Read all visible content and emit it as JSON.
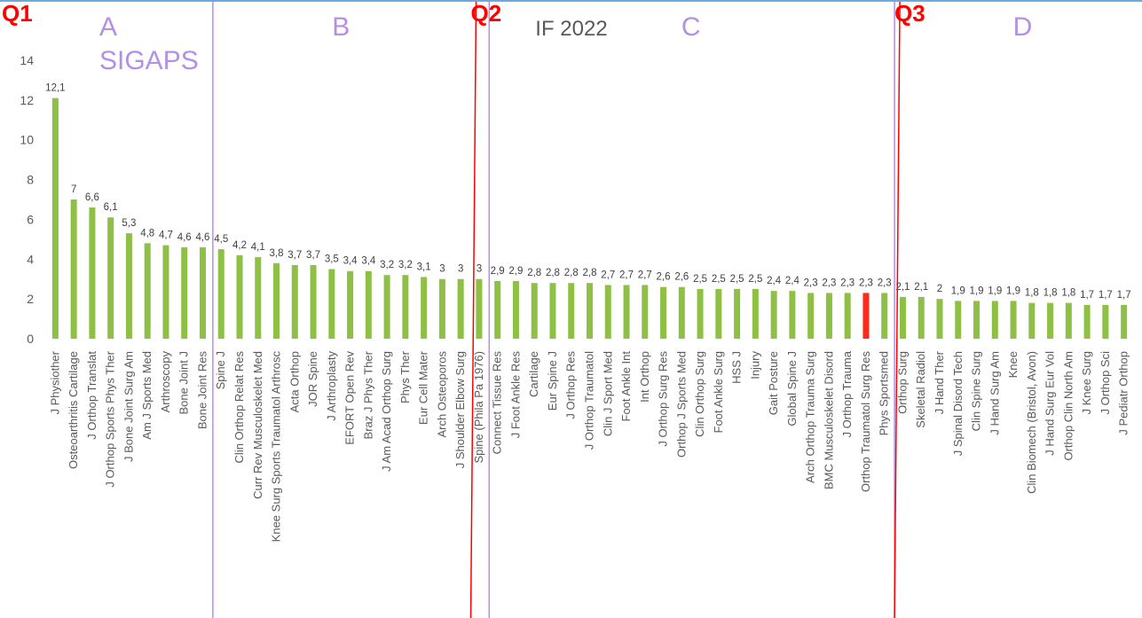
{
  "chart_data": {
    "type": "bar",
    "title": "IF 2022",
    "ylim": [
      0,
      14
    ],
    "yticks": [
      "0",
      "2",
      "4",
      "6",
      "8",
      "10",
      "12",
      "14"
    ],
    "grid": false,
    "bar_color": "#8dc044",
    "highlight_color": "#ff2a1a",
    "highlight_category": "Orthop Traumatol Surg Res",
    "categories": [
      "J Physiother",
      "Osteoarthritis Cartilage",
      "J Orthop Translat",
      "J Orthop Sports Phys Ther",
      "J Bone Joint Surg Am",
      "Am J Sports Med",
      "Arthroscopy",
      "Bone Joint J",
      "Bone Joint Res",
      "Spine J",
      "Clin Orthop Relat Res",
      "Curr Rev Musculoskelet Med",
      "Knee Surg Sports Traumatol Arthrosc",
      "Acta Orthop",
      "JOR Spine",
      "J Arthroplasty",
      "EFORT Open Rev",
      "Braz J Phys Ther",
      "J Am Acad Orthop Surg",
      "Phys Ther",
      "Eur Cell Mater",
      "Arch Osteoporos",
      "J Shoulder Elbow Surg",
      "Spine (Phila Pa 1976)",
      "Connect Tissue Res",
      "J Foot Ankle Res",
      "Cartilage",
      "Eur Spine J",
      "J Orthop Res",
      "J Orthop Traumatol",
      "Clin J Sport Med",
      "Foot Ankle Int",
      "Int Orthop",
      "J Orthop Surg Res",
      "Orthop J Sports Med",
      "Clin Orthop Surg",
      "Foot Ankle Surg",
      "HSS J",
      "Injury",
      "Gait Posture",
      "Global Spine J",
      "Arch Orthop Trauma Surg",
      "BMC Musculoskelet Disord",
      "J Orthop Trauma",
      "Orthop Traumatol Surg Res",
      "Phys Sportsmed",
      "Orthop Surg",
      "Skeletal Radiol",
      "J Hand Ther",
      "J Spinal Disord Tech",
      "Clin Spine Surg",
      "J Hand Surg Am",
      "Knee",
      "Clin Biomech (Bristol, Avon)",
      "J Hand Surg Eur Vol",
      "Orthop Clin North Am",
      "J Knee Surg",
      "J Orthop Sci",
      "J Pediatr Orthop"
    ],
    "values": [
      12.1,
      7,
      6.6,
      6.1,
      5.3,
      4.8,
      4.7,
      4.6,
      4.6,
      4.5,
      4.2,
      4.1,
      3.8,
      3.7,
      3.7,
      3.5,
      3.4,
      3.4,
      3.2,
      3.2,
      3.1,
      3,
      3,
      3,
      2.9,
      2.9,
      2.8,
      2.8,
      2.8,
      2.8,
      2.7,
      2.7,
      2.7,
      2.6,
      2.6,
      2.5,
      2.5,
      2.5,
      2.5,
      2.4,
      2.4,
      2.3,
      2.3,
      2.3,
      2.3,
      2.3,
      2.1,
      2.1,
      2,
      1.9,
      1.9,
      1.9,
      1.9,
      1.8,
      1.8,
      1.8,
      1.7,
      1.7,
      1.7
    ],
    "data_labels": [
      "12,1",
      "7",
      "6,6",
      "6,1",
      "5,3",
      "4,8",
      "4,7",
      "4,6",
      "4,6",
      "4,5",
      "4,2",
      "4,1",
      "3,8",
      "3,7",
      "3,7",
      "3,5",
      "3,4",
      "3,4",
      "3,2",
      "3,2",
      "3,1",
      "3",
      "3",
      "3",
      "2,9",
      "2,9",
      "2,8",
      "2,8",
      "2,8",
      "2,8",
      "2,7",
      "2,7",
      "2,7",
      "2,6",
      "2,6",
      "2,5",
      "2,5",
      "2,5",
      "2,5",
      "2,4",
      "2,4",
      "2,3",
      "2,3",
      "2,3",
      "2,3",
      "2,3",
      "2,1",
      "2,1",
      "2",
      "1,9",
      "1,9",
      "1,9",
      "1,9",
      "1,8",
      "1,8",
      "1,8",
      "1,7",
      "1,7",
      "1,7"
    ],
    "quartile_dividers": [
      {
        "label": "Q1",
        "after_index": -1,
        "color": "#ff0000"
      },
      {
        "label": "Q2",
        "after_index": 22,
        "color": "#ff0000"
      },
      {
        "label": "Q3",
        "after_index": 45,
        "color": "#ff0000"
      }
    ],
    "group_dividers": [
      {
        "after_index": 8,
        "color": "#b38fe8"
      },
      {
        "after_index": 23,
        "color": "#b38fe8"
      },
      {
        "after_index": 45,
        "color": "#b38fe8"
      }
    ],
    "group_labels": [
      {
        "label": "A",
        "sublabel": "SIGAPS",
        "from_index": 0,
        "to_index": 8
      },
      {
        "label": "B",
        "from_index": 9,
        "to_index": 22
      },
      {
        "label": "C",
        "from_index": 24,
        "to_index": 45
      },
      {
        "label": "D",
        "from_index": 47,
        "to_index": 58
      }
    ]
  }
}
